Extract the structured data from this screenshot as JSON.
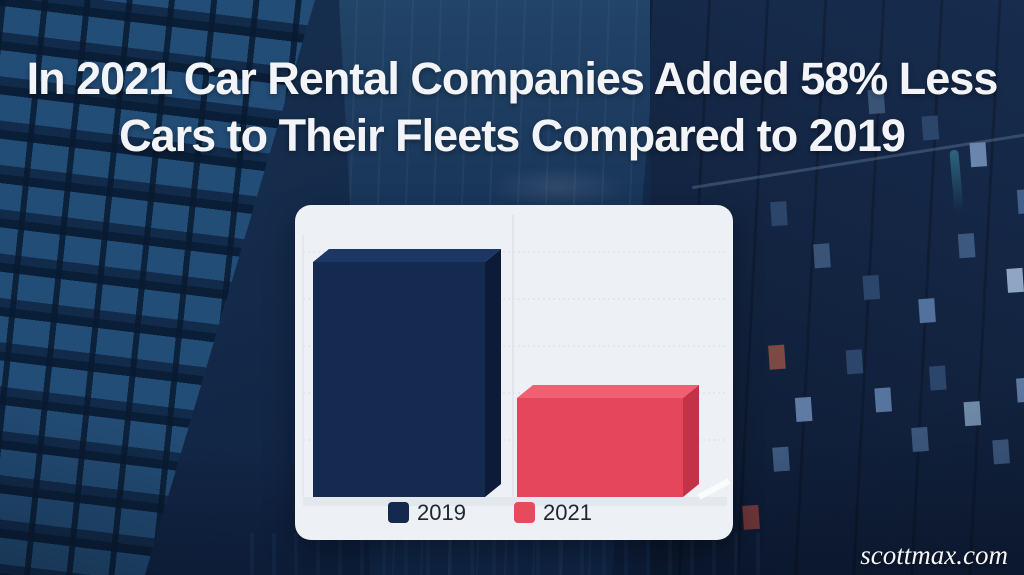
{
  "title": {
    "line1": "In 2021 Car Rental Companies Added 58% Less",
    "line2": "Cars to Their Fleets Compared to 2019"
  },
  "watermark": "scottmax.com",
  "chart_data": {
    "type": "bar",
    "title": "In 2021 Car Rental Companies Added 58% Less Cars to Their Fleets Compared to 2019",
    "categories": [
      "2019",
      "2021"
    ],
    "values": [
      100,
      42
    ],
    "value_note": "relative units; 2021 bar is 58% lower than 2019 bar; no numeric axis labels shown",
    "xlabel": "",
    "ylabel": "",
    "grid": true,
    "legend_position": "bottom",
    "legend": [
      {
        "label": "2019",
        "color": "#132a4e"
      },
      {
        "label": "2021",
        "color": "#e9495d"
      }
    ],
    "bar_colors": [
      {
        "front": "#142a4e",
        "top": "#1c3764",
        "right": "#0c1c38"
      },
      {
        "front": "#e5465b",
        "top": "#ef6072",
        "right": "#c23348"
      }
    ]
  }
}
